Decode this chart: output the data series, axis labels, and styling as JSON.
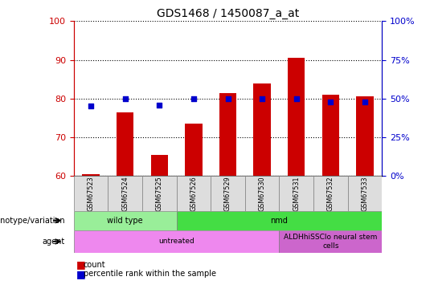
{
  "title": "GDS1468 / 1450087_a_at",
  "samples": [
    "GSM67523",
    "GSM67524",
    "GSM67525",
    "GSM67526",
    "GSM67529",
    "GSM67530",
    "GSM67531",
    "GSM67532",
    "GSM67533"
  ],
  "count_values": [
    60.5,
    76.5,
    65.5,
    73.5,
    81.5,
    84.0,
    90.5,
    81.0,
    80.5
  ],
  "percentile_values": [
    45,
    50,
    46,
    50,
    50,
    50,
    50,
    48,
    48
  ],
  "ylim": [
    60,
    100
  ],
  "yticks_left": [
    60,
    70,
    80,
    90,
    100
  ],
  "yticks_right": [
    0,
    25,
    50,
    75,
    100
  ],
  "count_color": "#cc0000",
  "percentile_color": "#0000cc",
  "bar_bottom": 60,
  "genotype_groups": [
    {
      "label": "wild type",
      "start": 0,
      "end": 3,
      "color": "#99ee99"
    },
    {
      "label": "nmd",
      "start": 3,
      "end": 9,
      "color": "#44dd44"
    }
  ],
  "agent_groups": [
    {
      "label": "untreated",
      "start": 0,
      "end": 6,
      "color": "#ee88ee"
    },
    {
      "label": "ALDHhiSSClo neural stem\ncells",
      "start": 6,
      "end": 9,
      "color": "#cc66cc"
    }
  ],
  "legend_count_label": "count",
  "legend_pct_label": "percentile rank within the sample",
  "bar_width": 0.5
}
